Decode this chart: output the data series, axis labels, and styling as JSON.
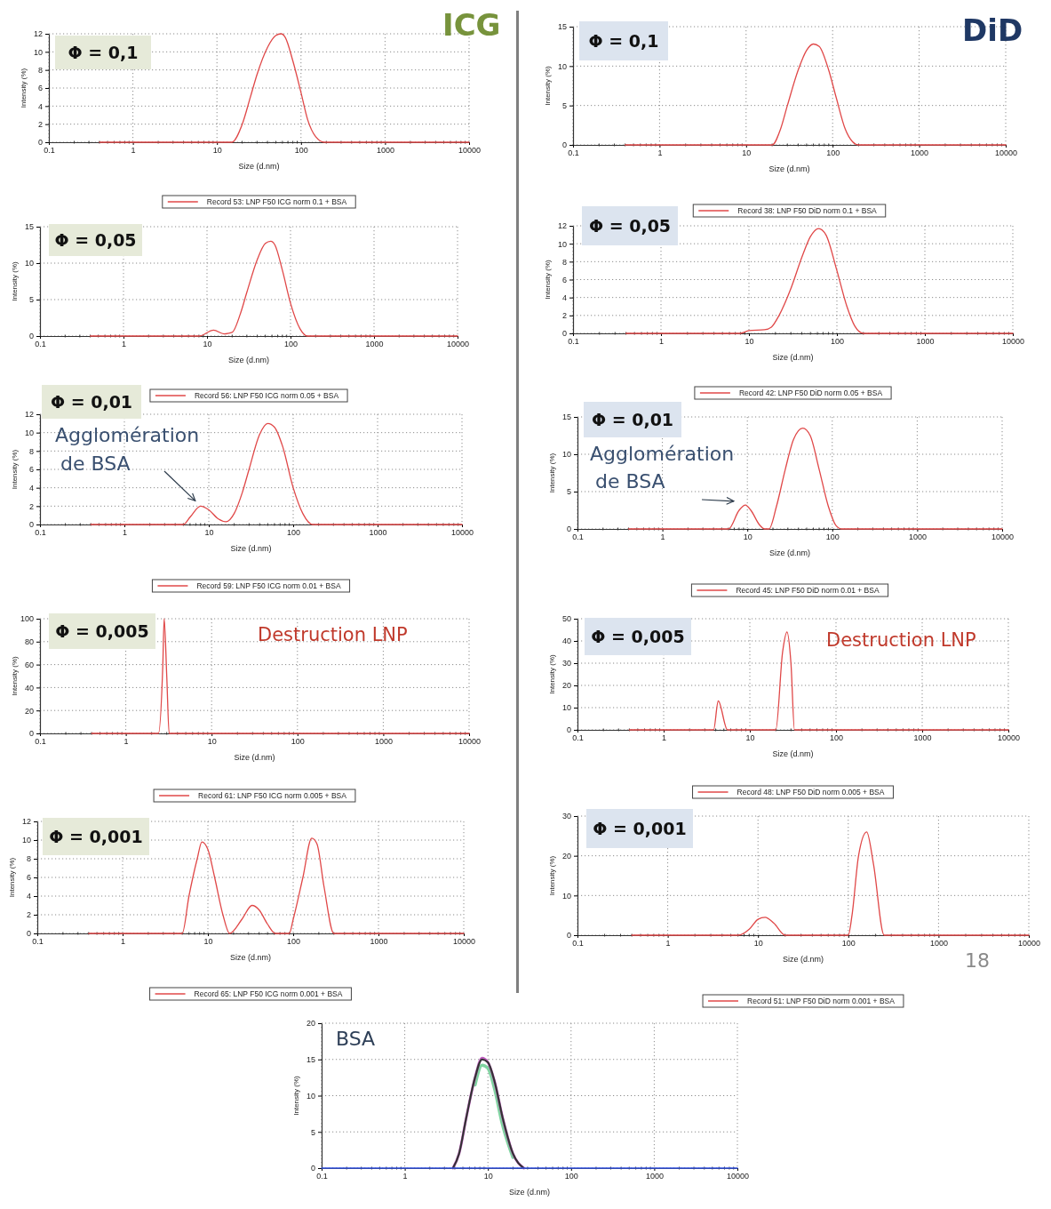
{
  "chart_data": [
    {
      "type": "line",
      "title": "Φ = 0,1",
      "xlabel": "Size (d.nm)",
      "ylabel": "Intensity (%)",
      "log": "x",
      "grid": true,
      "legend": "bottom",
      "xlim": [
        0.1,
        10000
      ],
      "xticks": [
        0.1,
        1,
        10,
        100,
        1000,
        10000
      ],
      "ylim": [
        0,
        12
      ],
      "yticks": [
        0,
        2,
        4,
        6,
        8,
        10,
        12
      ],
      "annotations": [
        "ICG"
      ],
      "series": [
        {
          "name": "Record 53: LNP F50 ICG norm 0.1 + BSA",
          "color": "#e04848",
          "x": [
            0.4,
            15,
            20,
            25,
            30,
            40,
            50,
            58,
            65,
            80,
            100,
            120,
            150,
            190,
            10000
          ],
          "values": [
            0,
            0,
            2,
            5,
            7.5,
            10.5,
            11.8,
            12,
            11.6,
            9,
            5.5,
            2.5,
            0.6,
            0,
            0
          ]
        }
      ]
    },
    {
      "type": "line",
      "title": "Φ = 0,05",
      "xlabel": "Size (d.nm)",
      "ylabel": "Intensity (%)",
      "log": "x",
      "grid": true,
      "legend": "bottom",
      "xlim": [
        0.1,
        10000
      ],
      "xticks": [
        0.1,
        1,
        10,
        100,
        1000,
        10000
      ],
      "ylim": [
        0,
        15
      ],
      "yticks": [
        0,
        5,
        10,
        15
      ],
      "series": [
        {
          "name": "Record 56: LNP F50 ICG norm 0.05 + BSA",
          "color": "#e04848",
          "x": [
            0.4,
            8,
            12,
            16,
            20,
            25,
            30,
            40,
            50,
            58,
            65,
            80,
            100,
            130,
            160,
            10000
          ],
          "values": [
            0,
            0,
            0.8,
            0.3,
            0.5,
            3,
            6,
            10.5,
            12.7,
            13,
            12.5,
            9,
            4.5,
            1,
            0,
            0
          ]
        }
      ]
    },
    {
      "type": "line",
      "title": "Φ = 0,01",
      "xlabel": "Size (d.nm)",
      "ylabel": "Intensity (%)",
      "log": "x",
      "grid": true,
      "legend": "bottom",
      "xlim": [
        0.1,
        10000
      ],
      "xticks": [
        0.1,
        1,
        10,
        100,
        1000,
        10000
      ],
      "ylim": [
        0,
        12
      ],
      "yticks": [
        0,
        2,
        4,
        6,
        8,
        10,
        12
      ],
      "annotations": [
        {
          "text": "Agglomération de BSA",
          "x": 8,
          "y": 2
        }
      ],
      "series": [
        {
          "name": "Record 59: LNP F50 ICG norm 0.01 + BSA",
          "color": "#e04848",
          "x": [
            0.4,
            5,
            6,
            8,
            10,
            13,
            16,
            20,
            25,
            30,
            40,
            50,
            60,
            75,
            100,
            130,
            170,
            10000
          ],
          "values": [
            0,
            0,
            0.8,
            2,
            1.6,
            0.6,
            0.3,
            1.2,
            3.5,
            6,
            9.8,
            11,
            10.6,
            8.5,
            4,
            1.2,
            0,
            0
          ]
        }
      ]
    },
    {
      "type": "line",
      "title": "Φ = 0,005",
      "xlabel": "Size (d.nm)",
      "ylabel": "Intensity (%)",
      "log": "x",
      "grid": true,
      "legend": "bottom",
      "xlim": [
        0.1,
        10000
      ],
      "xticks": [
        0.1,
        1,
        10,
        100,
        1000,
        10000
      ],
      "ylim": [
        0,
        100
      ],
      "yticks": [
        0,
        20,
        40,
        60,
        80,
        100
      ],
      "annotations": [
        "Destruction LNP"
      ],
      "series": [
        {
          "name": "Record 61: LNP F50 ICG norm 0.005 + BSA",
          "color": "#e04848",
          "x": [
            0.4,
            2.4,
            2.7,
            2.8,
            3,
            3.2,
            10000
          ],
          "values": [
            0,
            0,
            60,
            100,
            50,
            0,
            0
          ]
        }
      ]
    },
    {
      "type": "line",
      "title": "Φ = 0,001",
      "xlabel": "Size (d.nm)",
      "ylabel": "Intensity (%)",
      "log": "x",
      "grid": true,
      "legend": "bottom",
      "xlim": [
        0.1,
        10000
      ],
      "xticks": [
        0.1,
        1,
        10,
        100,
        1000,
        10000
      ],
      "ylim": [
        0,
        12
      ],
      "yticks": [
        0,
        2,
        4,
        6,
        8,
        10,
        12
      ],
      "series": [
        {
          "name": "Record 65: LNP F50 ICG norm 0.001 + BSA",
          "color": "#e04848",
          "x": [
            0.4,
            5,
            6,
            7.5,
            8.5,
            10,
            12,
            15,
            18,
            25,
            33,
            40,
            50,
            62,
            90,
            100,
            130,
            165,
            190,
            230,
            300,
            10000
          ],
          "values": [
            0,
            0,
            4,
            8,
            9.8,
            9,
            6,
            2,
            0,
            1.5,
            3,
            2.5,
            1,
            0,
            0,
            1.5,
            6,
            10.2,
            9.6,
            5,
            0,
            0
          ]
        }
      ]
    },
    {
      "type": "line",
      "title": "Φ = 0,1",
      "xlabel": "Size (d.nm)",
      "ylabel": "Intensity (%)",
      "log": "x",
      "grid": true,
      "legend": "bottom",
      "xlim": [
        0.1,
        10000
      ],
      "xticks": [
        0.1,
        1,
        10,
        100,
        1000,
        10000
      ],
      "ylim": [
        0,
        15
      ],
      "yticks": [
        0,
        5,
        10,
        15
      ],
      "annotations": [
        "DiD"
      ],
      "series": [
        {
          "name": "Record 38: LNP F50 DiD norm 0.1 + BSA",
          "color": "#e04848",
          "x": [
            0.4,
            20,
            25,
            30,
            40,
            50,
            60,
            70,
            90,
            110,
            140,
            170,
            200,
            10000
          ],
          "values": [
            0,
            0,
            2,
            5,
            9.5,
            12,
            12.8,
            12.5,
            9.5,
            6,
            2,
            0.4,
            0,
            0
          ]
        }
      ]
    },
    {
      "type": "line",
      "title": "Φ = 0,05",
      "xlabel": "Size (d.nm)",
      "ylabel": "Intensity (%)",
      "log": "x",
      "grid": true,
      "legend": "bottom",
      "xlim": [
        0.1,
        10000
      ],
      "xticks": [
        0.1,
        1,
        10,
        100,
        1000,
        10000
      ],
      "ylim": [
        0,
        12
      ],
      "yticks": [
        0,
        2,
        4,
        6,
        8,
        10,
        12
      ],
      "series": [
        {
          "name": "Record 42: LNP F50 DiD norm 0.05 + BSA",
          "color": "#e04848",
          "x": [
            0.4,
            8,
            10,
            15,
            18,
            22,
            30,
            40,
            50,
            62,
            75,
            100,
            130,
            160,
            200,
            10000
          ],
          "values": [
            0,
            0,
            0.3,
            0.4,
            0.7,
            2,
            5,
            8.5,
            10.8,
            11.7,
            11,
            7,
            3,
            0.8,
            0,
            0
          ]
        }
      ]
    },
    {
      "type": "line",
      "title": "Φ = 0,01",
      "xlabel": "Size (d.nm)",
      "ylabel": "Intensity (%)",
      "log": "x",
      "grid": true,
      "legend": "bottom",
      "xlim": [
        0.1,
        10000
      ],
      "xticks": [
        0.1,
        1,
        10,
        100,
        1000,
        10000
      ],
      "ylim": [
        0,
        15
      ],
      "yticks": [
        0,
        5,
        10,
        15
      ],
      "annotations": [
        {
          "text": "Agglomération de BSA",
          "x": 8,
          "y": 3
        }
      ],
      "series": [
        {
          "name": "Record 45: LNP F50 DiD norm 0.01 + BSA",
          "color": "#e04848",
          "x": [
            0.4,
            6,
            8,
            9.5,
            11,
            14,
            16,
            18,
            22,
            28,
            35,
            45,
            55,
            70,
            90,
            110,
            130,
            10000
          ],
          "values": [
            0,
            0,
            2.5,
            3.2,
            2.5,
            0.5,
            0,
            0,
            3,
            8,
            12,
            13.5,
            12.5,
            8,
            3,
            0.5,
            0,
            0
          ]
        }
      ]
    },
    {
      "type": "line",
      "title": "Φ = 0,005",
      "xlabel": "Size (d.nm)",
      "ylabel": "Intensity (%)",
      "log": "x",
      "grid": true,
      "legend": "bottom",
      "xlim": [
        0.1,
        10000
      ],
      "xticks": [
        0.1,
        1,
        10,
        100,
        1000,
        10000
      ],
      "ylim": [
        0,
        50
      ],
      "yticks": [
        0,
        10,
        20,
        30,
        40,
        50
      ],
      "annotations": [
        "Destruction LNP"
      ],
      "series": [
        {
          "name": "Record 48: LNP F50 DiD norm 0.005 + BSA",
          "color": "#e04848",
          "x": [
            0.4,
            3.8,
            4.3,
            5.5,
            20,
            24,
            27,
            30,
            33,
            10000
          ],
          "values": [
            0,
            0,
            13,
            0,
            0,
            35,
            44,
            30,
            0,
            0
          ]
        }
      ]
    },
    {
      "type": "line",
      "title": "Φ = 0,001",
      "xlabel": "Size (d.nm)",
      "ylabel": "Intensity (%)",
      "log": "x",
      "grid": true,
      "legend": "bottom",
      "xlim": [
        0.1,
        10000
      ],
      "xticks": [
        0.1,
        1,
        10,
        100,
        1000,
        10000
      ],
      "ylim": [
        0,
        30
      ],
      "yticks": [
        0,
        10,
        20,
        30
      ],
      "annotations": [
        "18"
      ],
      "series": [
        {
          "name": "Record 51: LNP F50 DiD norm 0.001 + BSA",
          "color": "#e04848",
          "x": [
            0.4,
            6,
            8,
            10,
            12,
            15,
            20,
            100,
            110,
            130,
            160,
            190,
            250,
            10000
          ],
          "values": [
            0,
            0,
            1.5,
            4,
            4.5,
            3,
            0,
            0,
            5,
            20,
            26,
            18,
            0,
            0
          ]
        }
      ]
    },
    {
      "type": "line",
      "xlabel": "Size (d.nm)",
      "ylabel": "Intensity (%)",
      "log": "x",
      "grid": true,
      "xlim": [
        0.1,
        10000
      ],
      "xticks": [
        0.1,
        1,
        10,
        100,
        1000,
        10000
      ],
      "ylim": [
        0,
        20
      ],
      "yticks": [
        0,
        5,
        10,
        15,
        20
      ],
      "annotations": [
        "BSA"
      ],
      "series": [
        {
          "color": "#7fd3a0",
          "x": [
            7,
            8.5,
            10,
            12,
            15,
            20
          ],
          "values": [
            11.5,
            14.2,
            13.8,
            11,
            6,
            1.5
          ]
        },
        {
          "color": "#c060c0",
          "x": [
            3.8,
            4.5,
            5.5,
            7,
            8.5,
            10,
            12,
            15,
            20,
            27
          ],
          "values": [
            0,
            2,
            7,
            12.5,
            15.2,
            14.6,
            12,
            7,
            2,
            0
          ]
        },
        {
          "color": "#333333",
          "x": [
            3.8,
            4.5,
            5.5,
            7,
            8.5,
            10,
            12,
            15,
            20,
            27
          ],
          "values": [
            0,
            2,
            7,
            12.5,
            15,
            14.6,
            12,
            7,
            2,
            0
          ]
        },
        {
          "color": "#3050e0",
          "x": [
            0.1,
            1,
            10,
            100,
            1000,
            10000
          ],
          "values": [
            0,
            0,
            0,
            0,
            0,
            0
          ]
        }
      ]
    }
  ]
}
